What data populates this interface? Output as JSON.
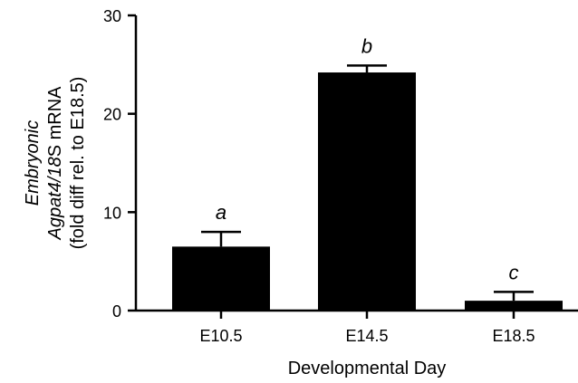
{
  "chart_data": {
    "type": "bar",
    "categories": [
      "E10.5",
      "E14.5",
      "E18.5"
    ],
    "values": [
      6.5,
      24.2,
      1.0
    ],
    "errors": [
      1.5,
      0.7,
      0.9
    ],
    "significance_letters": [
      "a",
      "b",
      "c"
    ],
    "xlabel": "Developmental Day",
    "ylabel": {
      "line1": "Embryonic",
      "line2_italic": "Agpat4/18",
      "line2_rest": "S mRNA",
      "line3": "(fold diff rel. to E18.5)"
    },
    "ylim": [
      0,
      30
    ],
    "yticks": [
      0,
      10,
      20,
      30
    ],
    "bar_color": "#000000",
    "grid": false
  }
}
